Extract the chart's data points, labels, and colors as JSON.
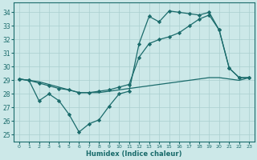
{
  "xlabel": "Humidex (Indice chaleur)",
  "xlim": [
    -0.5,
    23.5
  ],
  "ylim": [
    24.5,
    34.7
  ],
  "yticks": [
    25,
    26,
    27,
    28,
    29,
    30,
    31,
    32,
    33,
    34
  ],
  "xticks": [
    0,
    1,
    2,
    3,
    4,
    5,
    6,
    7,
    8,
    9,
    10,
    11,
    12,
    13,
    14,
    15,
    16,
    17,
    18,
    19,
    20,
    21,
    22,
    23
  ],
  "bg_color": "#cce8e8",
  "line_color": "#1a6b6b",
  "grid_color": "#aacfcf",
  "line1_x": [
    0,
    1,
    2,
    3,
    4,
    5,
    6,
    7,
    8,
    9,
    10,
    11,
    12,
    13,
    14,
    15,
    16,
    17,
    18,
    19,
    20,
    21,
    22,
    23
  ],
  "line1_y": [
    29.1,
    29.0,
    27.5,
    28.0,
    27.5,
    26.5,
    25.2,
    25.8,
    26.1,
    27.1,
    28.0,
    28.2,
    31.7,
    33.7,
    33.3,
    34.1,
    34.0,
    33.9,
    33.8,
    34.0,
    32.7,
    29.9,
    29.2,
    29.2
  ],
  "line2_x": [
    0,
    1,
    2,
    3,
    4,
    5,
    6,
    7,
    8,
    9,
    10,
    11,
    12,
    13,
    14,
    15,
    16,
    17,
    18,
    19,
    20,
    21,
    22,
    23
  ],
  "line2_y": [
    29.1,
    29.0,
    28.9,
    28.7,
    28.5,
    28.3,
    28.1,
    28.1,
    28.1,
    28.2,
    28.3,
    28.4,
    28.5,
    28.6,
    28.7,
    28.8,
    28.9,
    29.0,
    29.1,
    29.2,
    29.2,
    29.1,
    29.0,
    29.2
  ],
  "line3_x": [
    0,
    1,
    2,
    3,
    4,
    5,
    6,
    7,
    8,
    9,
    10,
    11,
    12,
    13,
    14,
    15,
    16,
    17,
    18,
    19,
    20,
    21,
    22,
    23
  ],
  "line3_y": [
    29.1,
    29.0,
    28.8,
    28.6,
    28.4,
    28.3,
    28.1,
    28.1,
    28.2,
    28.3,
    28.5,
    28.7,
    30.7,
    31.7,
    32.0,
    32.2,
    32.5,
    33.0,
    33.5,
    33.8,
    32.7,
    29.9,
    29.2,
    29.2
  ]
}
